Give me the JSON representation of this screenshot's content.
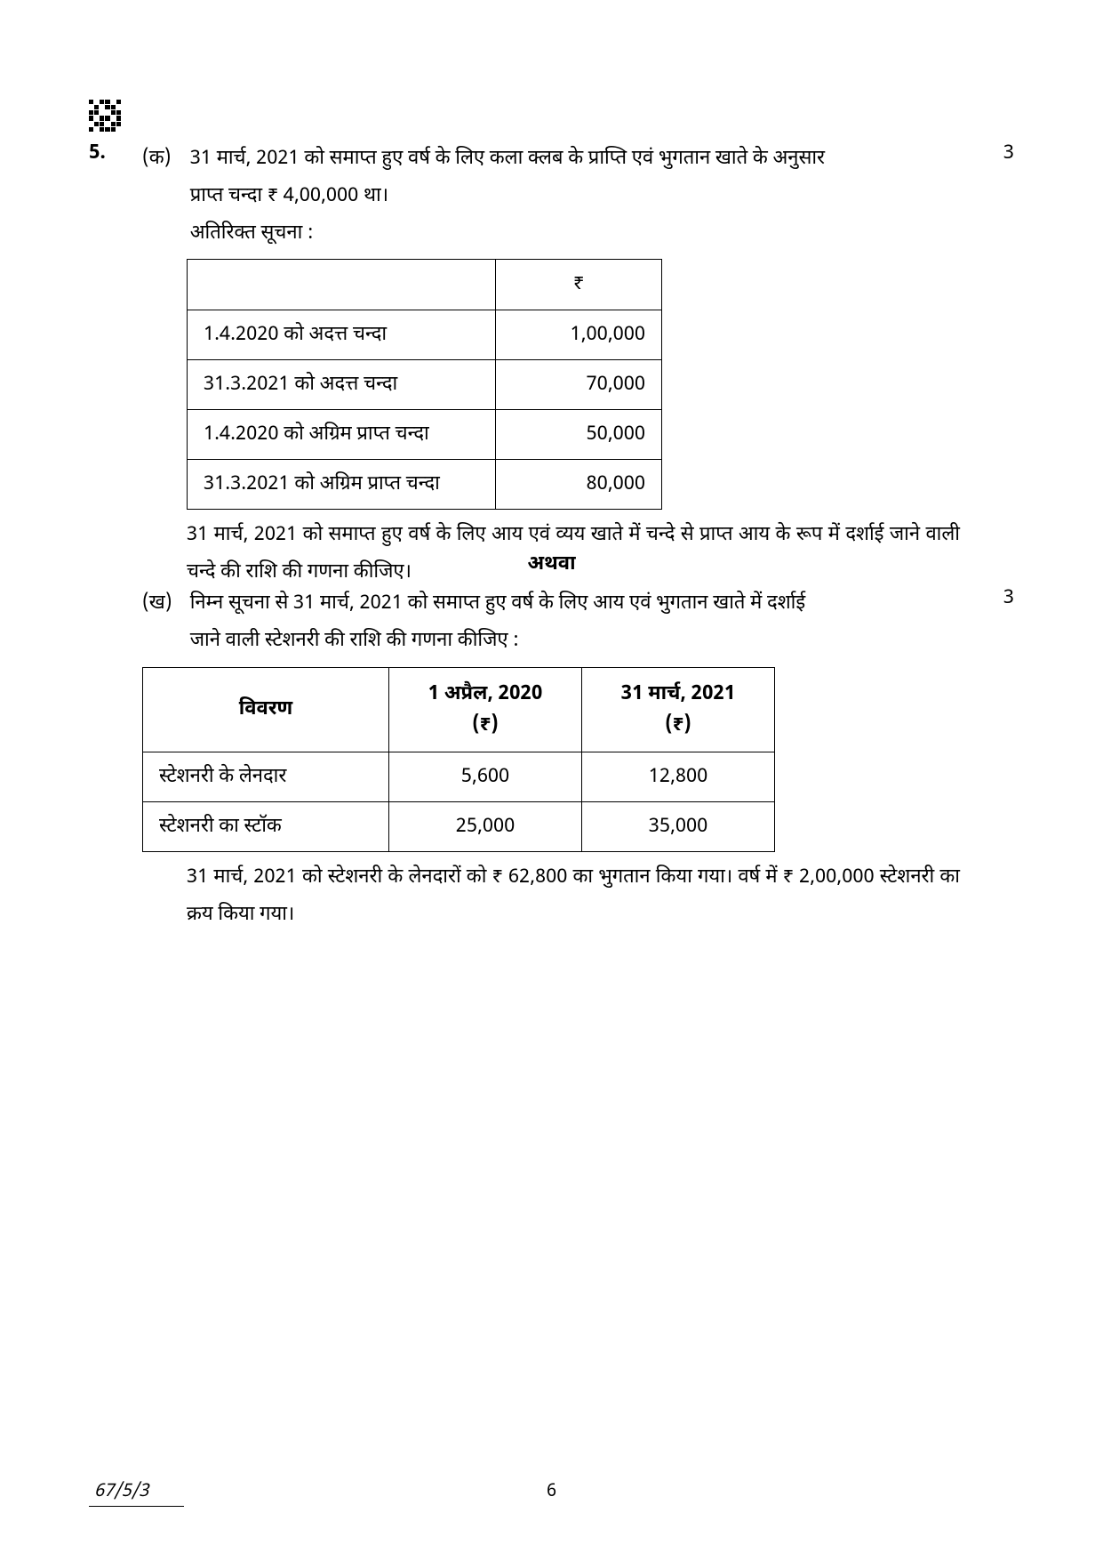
{
  "question_number": "5.",
  "part_a": {
    "label": "(क)",
    "marks": "3",
    "lines": [
      "31 मार्च, 2021 को समाप्त हुए वर्ष के लिए कला क्लब के प्राप्ति एवं भुगतान खाते के अनुसार",
      "प्राप्त चन्दा ₹ 4,00,000 था।",
      "अतिरिक्त सूचना :"
    ],
    "table": {
      "header": [
        "",
        "₹"
      ],
      "rows": [
        [
          "1.4.2020 को अदत्त चन्दा",
          "1,00,000"
        ],
        [
          "31.3.2021 को अदत्त चन्दा",
          "70,000"
        ],
        [
          "1.4.2020 को अग्रिम प्राप्त चन्दा",
          "50,000"
        ],
        [
          "31.3.2021 को अग्रिम प्राप्त चन्दा",
          "80,000"
        ]
      ]
    },
    "after": "31 मार्च, 2021 को समाप्त हुए वर्ष के लिए आय एवं व्यय खाते में चन्दे से प्राप्त आय के रूप में दर्शाई जाने वाली चन्दे की राशि की गणना कीजिए।"
  },
  "or_label": "अथवा",
  "part_b": {
    "label": "(ख)",
    "marks": "3",
    "lines": [
      "निम्न सूचना से 31 मार्च, 2021 को समाप्त हुए वर्ष के लिए आय एवं भुगतान खाते में दर्शाई",
      "जाने वाली स्टेशनरी की राशि की गणना कीजिए :"
    ],
    "table": {
      "header": [
        "विवरण",
        "1 अप्रैल, 2020\n(₹)",
        "31 मार्च, 2021\n(₹)"
      ],
      "rows": [
        [
          "स्टेशनरी के लेनदार",
          "5,600",
          "12,800"
        ],
        [
          "स्टेशनरी का स्टॉक",
          "25,000",
          "35,000"
        ]
      ]
    },
    "after": "31 मार्च, 2021 को स्टेशनरी के लेनदारों को ₹ 62,800 का भुगतान किया गया। वर्ष में ₹ 2,00,000 स्टेशनरी का क्रय किया गया।"
  },
  "footer": {
    "code": "67/5/3",
    "page": "6"
  }
}
